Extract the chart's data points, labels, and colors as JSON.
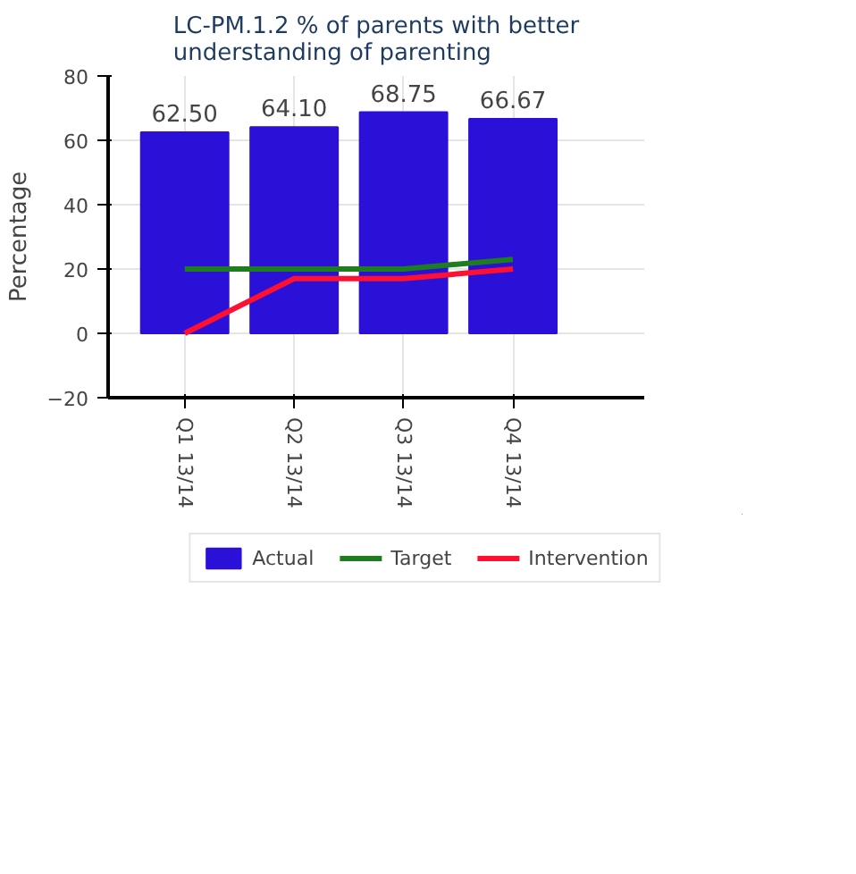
{
  "chart_data": {
    "type": "bar",
    "title": "LC-PM.1.2 % of parents with better understanding of parenting",
    "ylabel": "Percentage",
    "categories": [
      "Q1 13/14",
      "Q2 13/14",
      "Q3 13/14",
      "Q4 13/14"
    ],
    "series": [
      {
        "name": "Actual",
        "color": "#2b10d8",
        "values": [
          62.5,
          64.1,
          68.75,
          66.67
        ],
        "value_labels": [
          "62.50",
          "64.10",
          "68.75",
          "66.67"
        ]
      },
      {
        "name": "Target",
        "type": "line",
        "color": "#1e7d1e",
        "values": [
          20,
          20,
          20,
          23
        ]
      },
      {
        "name": "Intervention",
        "type": "line",
        "color": "#ff1030",
        "values": [
          0,
          17,
          17,
          20
        ]
      }
    ],
    "ylim": [
      -20,
      80
    ],
    "yticks": [
      -20,
      0,
      20,
      40,
      60,
      80
    ],
    "grid": true,
    "legend": "bottom"
  }
}
